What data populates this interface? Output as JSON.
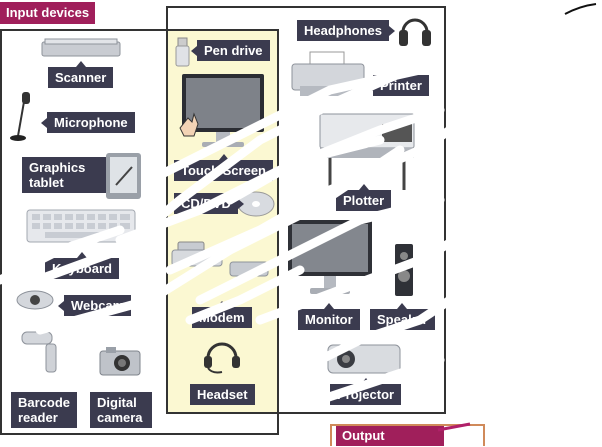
{
  "headings": {
    "input": "Input devices",
    "output": "Output"
  },
  "labels": {
    "scanner": "Scanner",
    "microphone": "Microphone",
    "graphics_tablet": "Graphics\ntablet",
    "keyboard": "Keyboard",
    "webcam": "Webcam",
    "barcode_reader": "Barcode\nreader",
    "digital_camera": "Digital\ncamera",
    "pen_drive": "Pen drive",
    "touch_screen": "Touch Screen",
    "cd_dvd": "CD/DVD",
    "modem": "Modem",
    "headset": "Headset",
    "headphones": "Headphones",
    "printer": "Printer",
    "plotter": "Plotter",
    "monitor": "Monitor",
    "speaker": "Speaker",
    "projector": "Projector"
  },
  "colors": {
    "heading_bg": "#a01f5b",
    "label_bg": "#3b3b4f",
    "shared_zone_bg": "#fbf8d2",
    "output_border": "#d08a5a"
  }
}
